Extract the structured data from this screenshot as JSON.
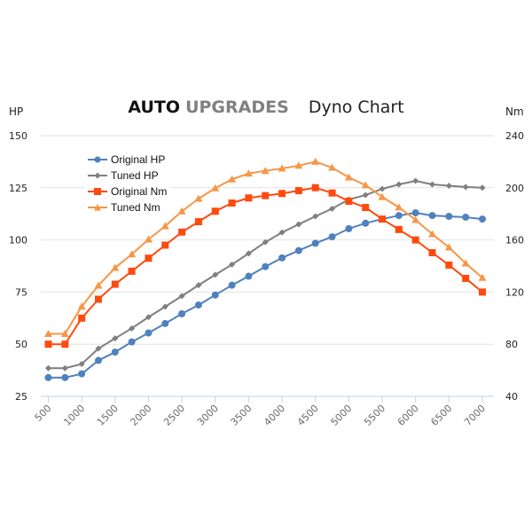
{
  "header": {
    "brand_primary": "AUTO",
    "brand_secondary": "UPGRADES",
    "subtitle": "Dyno Chart"
  },
  "chart_data": {
    "type": "line",
    "title": "AUTO UPGRADES Dyno Chart",
    "xlabel": "",
    "ylabel_left": "HP",
    "ylabel_right": "Nm",
    "x": [
      500,
      750,
      1000,
      1250,
      1500,
      1750,
      2000,
      2250,
      2500,
      2750,
      3000,
      3250,
      3500,
      3750,
      4000,
      4250,
      4500,
      4750,
      5000,
      5250,
      5500,
      5750,
      6000,
      6250,
      6500,
      6750,
      7000
    ],
    "x_ticks": [
      "500",
      "1000",
      "1500",
      "2000",
      "2500",
      "3000",
      "3500",
      "4000",
      "4500",
      "5000",
      "5500",
      "6000",
      "6500",
      "7000"
    ],
    "xlim": [
      500,
      7000
    ],
    "ylim_left": [
      25,
      150
    ],
    "y_ticks_left": [
      "25",
      "50",
      "75",
      "100",
      "125",
      "150"
    ],
    "ylim_right": [
      40,
      240
    ],
    "y_ticks_right": [
      "40",
      "80",
      "120",
      "160",
      "200",
      "240"
    ],
    "grid": true,
    "legend_position": "top-left",
    "series": [
      {
        "name": "Original HP",
        "axis": "left",
        "marker": "circle",
        "color": "#4F81BD",
        "values": [
          34,
          34,
          35.8,
          42.2,
          46.2,
          51.1,
          55.4,
          59.9,
          64.6,
          68.8,
          73.6,
          78.3,
          82.6,
          87.2,
          91.4,
          94.9,
          98.4,
          101.5,
          105.4,
          108,
          110,
          111.7,
          113,
          111.7,
          111.3,
          110.9,
          110
        ]
      },
      {
        "name": "Tuned HP",
        "axis": "left",
        "marker": "diamond",
        "color": "#7F7F7F",
        "values": [
          38.5,
          38.5,
          40.5,
          47.9,
          52.8,
          57.6,
          63,
          68,
          73.1,
          78.3,
          83.3,
          88.2,
          93.5,
          98.9,
          103.6,
          107.5,
          111.3,
          115,
          119.4,
          121.5,
          124.5,
          126.6,
          128.3,
          126.6,
          126,
          125.4,
          125
        ]
      },
      {
        "name": "Original Nm",
        "axis": "right",
        "marker": "square",
        "color": "#FF4A0E",
        "values": [
          80,
          80,
          100,
          114.5,
          126,
          136,
          146,
          156,
          166,
          174,
          182,
          188.3,
          192.2,
          194,
          195.6,
          197.8,
          200.1,
          196,
          189.7,
          184.9,
          176,
          168,
          160,
          150.2,
          140.7,
          130.5,
          120
        ]
      },
      {
        "name": "Tuned Nm",
        "axis": "right",
        "marker": "triangle",
        "color": "#F79646",
        "values": [
          88,
          88,
          109,
          125,
          138.6,
          149,
          160.4,
          170.6,
          182,
          191.7,
          199.7,
          206.5,
          211,
          213,
          214.8,
          217,
          220,
          215.5,
          208,
          202,
          193,
          185,
          175.4,
          164.5,
          154.3,
          142,
          131
        ]
      }
    ]
  }
}
